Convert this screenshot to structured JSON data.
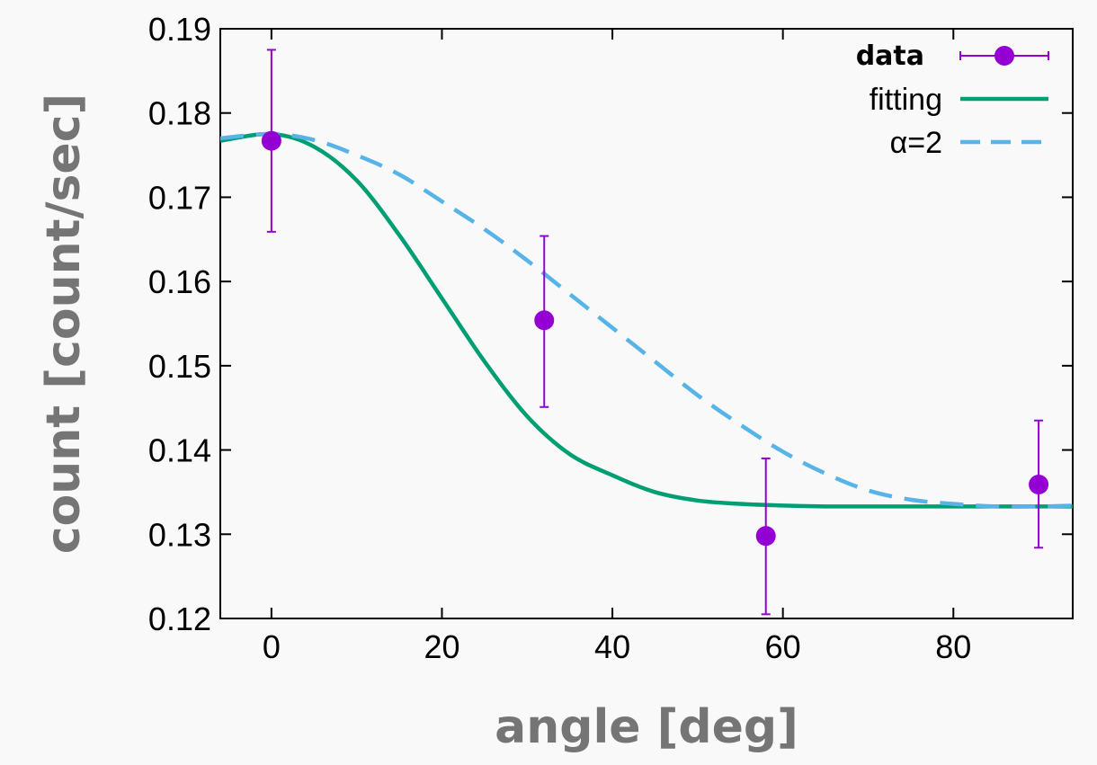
{
  "chart_data": {
    "type": "scatter",
    "xlabel": "angle [deg]",
    "ylabel": "count [count/sec]",
    "xlim": [
      -6,
      94
    ],
    "ylim": [
      0.12,
      0.19
    ],
    "x_ticks": [
      0,
      20,
      40,
      60,
      80
    ],
    "x_tick_labels": [
      "0",
      "20",
      "40",
      "60",
      "80"
    ],
    "y_ticks": [
      0.12,
      0.13,
      0.14,
      0.15,
      0.16,
      0.17,
      0.18,
      0.19
    ],
    "y_tick_labels": [
      "0.12",
      "0.13",
      "0.14",
      "0.15",
      "0.16",
      "0.17",
      "0.18",
      "0.19"
    ],
    "grid": false,
    "legend_position": "top-right",
    "series": [
      {
        "name": "data",
        "kind": "points-with-errorbars",
        "color": "#9400d3",
        "x": [
          0,
          32,
          58,
          90
        ],
        "y": [
          0.1767,
          0.1554,
          0.1298,
          0.1359
        ],
        "yerr_low": [
          0.1659,
          0.1451,
          0.1205,
          0.1284
        ],
        "yerr_high": [
          0.1875,
          0.1654,
          0.139,
          0.1435
        ]
      },
      {
        "name": "fitting",
        "kind": "line",
        "color": "#009e73",
        "dash": "solid",
        "x": [
          -6,
          0,
          5,
          10,
          15,
          20,
          25,
          30,
          35,
          40,
          45,
          50,
          55,
          60,
          65,
          70,
          75,
          80,
          85,
          90,
          94
        ],
        "y": [
          0.1767,
          0.1775,
          0.176,
          0.172,
          0.1655,
          0.158,
          0.1505,
          0.144,
          0.1395,
          0.137,
          0.135,
          0.134,
          0.1336,
          0.1334,
          0.1333,
          0.1333,
          0.1333,
          0.1333,
          0.1333,
          0.1333,
          0.1333
        ]
      },
      {
        "name": "α=2",
        "kind": "line",
        "color": "#56b4e9",
        "dash": "dashed",
        "x": [
          -6,
          0,
          5,
          10,
          15,
          20,
          25,
          30,
          35,
          40,
          45,
          50,
          55,
          60,
          65,
          70,
          75,
          80,
          85,
          90,
          94
        ],
        "y": [
          0.177,
          0.1775,
          0.1768,
          0.175,
          0.1727,
          0.1695,
          0.1662,
          0.1625,
          0.1585,
          0.1545,
          0.1505,
          0.1465,
          0.143,
          0.1398,
          0.1372,
          0.1352,
          0.1341,
          0.1336,
          0.1333,
          0.1333,
          0.1334
        ]
      }
    ]
  }
}
